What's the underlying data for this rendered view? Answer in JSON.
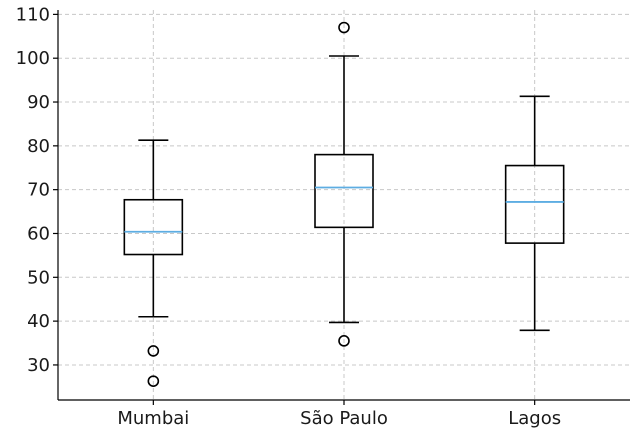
{
  "chart_data": {
    "type": "boxplot",
    "title": "",
    "xlabel": "",
    "ylabel": "",
    "ylim": [
      22,
      111
    ],
    "yticks": [
      30,
      40,
      50,
      60,
      70,
      80,
      90,
      100,
      110
    ],
    "grid": true,
    "median_color": "#5dade2",
    "categories": [
      "Mumbai",
      "São Paulo",
      "Lagos"
    ],
    "boxes": [
      {
        "category": "Mumbai",
        "whisker_low": 41,
        "q1": 55.2,
        "median": 60.4,
        "q3": 67.7,
        "whisker_high": 81.3,
        "outliers": [
          33.2,
          26.3
        ]
      },
      {
        "category": "São Paulo",
        "whisker_low": 39.7,
        "q1": 61.4,
        "median": 70.5,
        "q3": 78,
        "whisker_high": 100.5,
        "outliers": [
          107,
          35.5
        ]
      },
      {
        "category": "Lagos",
        "whisker_low": 37.9,
        "q1": 57.8,
        "median": 67.2,
        "q3": 75.5,
        "whisker_high": 91.3,
        "outliers": []
      }
    ]
  }
}
